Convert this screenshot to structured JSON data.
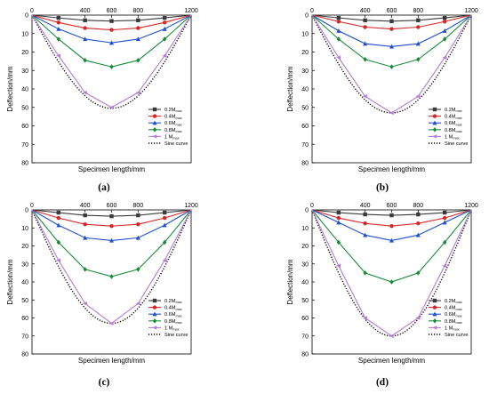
{
  "chart_data": [
    {
      "type": "line",
      "caption": "(a)",
      "xlabel": "Specimen length/mm",
      "ylabel": "Deflection/mm",
      "x_ticks": [
        "0",
        "400",
        "600",
        "800",
        "1200"
      ],
      "y_ticks": [
        "0",
        "10",
        "20",
        "30",
        "40",
        "50",
        "60",
        "70",
        "80"
      ],
      "xlim": [
        0,
        1200
      ],
      "ylim": [
        0,
        80
      ],
      "y_inverted": true,
      "x_axis_position": "top",
      "legend_placement": "bottom-right",
      "x": [
        0,
        200,
        400,
        600,
        800,
        1000,
        1200
      ],
      "series": [
        {
          "name": "0.2M",
          "subscript": "max",
          "color": "#3a3a3a",
          "marker": "square",
          "values": [
            0,
            1.5,
            2.8,
            3.2,
            2.8,
            1.5,
            0
          ]
        },
        {
          "name": "0.4M",
          "subscript": "max",
          "color": "#d62728",
          "marker": "circle",
          "values": [
            0,
            4,
            7,
            8,
            7,
            4,
            0
          ]
        },
        {
          "name": "0.6M",
          "subscript": "max",
          "color": "#1f4fc9",
          "marker": "triangle",
          "values": [
            0,
            7.5,
            13,
            15,
            13,
            7.5,
            0
          ]
        },
        {
          "name": "0.8M",
          "subscript": "max",
          "color": "#1a8a3a",
          "marker": "diamond",
          "values": [
            0,
            13,
            24.5,
            28,
            24.5,
            13,
            0
          ]
        },
        {
          "name": "1 M",
          "subscript": "max",
          "color": "#b57bd6",
          "marker": "triangle-left",
          "values": [
            0,
            22,
            42,
            50,
            42,
            22,
            0
          ]
        }
      ],
      "sine": {
        "name": "Sine curve",
        "color": "#000000",
        "amplitude": 50.5
      }
    },
    {
      "type": "line",
      "caption": "(b)",
      "xlabel": "Specimen length/mm",
      "ylabel": "Deflection/mm",
      "x_ticks": [
        "0",
        "400",
        "600",
        "800",
        "1200"
      ],
      "y_ticks": [
        "0",
        "10",
        "20",
        "30",
        "40",
        "50",
        "60",
        "70",
        "80"
      ],
      "xlim": [
        0,
        1200
      ],
      "ylim": [
        0,
        80
      ],
      "y_inverted": true,
      "x_axis_position": "top",
      "legend_placement": "bottom-right",
      "x": [
        0,
        200,
        400,
        600,
        800,
        1000,
        1200
      ],
      "series": [
        {
          "name": "0.2M",
          "subscript": "max",
          "color": "#3a3a3a",
          "marker": "square",
          "values": [
            0,
            1.5,
            2.8,
            3.3,
            2.8,
            1.5,
            0
          ]
        },
        {
          "name": "0.4M",
          "subscript": "max",
          "color": "#d62728",
          "marker": "circle",
          "values": [
            0,
            3.5,
            6.5,
            7.5,
            6.5,
            3.5,
            0
          ]
        },
        {
          "name": "0.6M",
          "subscript": "max",
          "color": "#1f4fc9",
          "marker": "triangle",
          "values": [
            0,
            8.5,
            15.5,
            17,
            15.5,
            8.5,
            0
          ]
        },
        {
          "name": "0.8M",
          "subscript": "max",
          "color": "#1a8a3a",
          "marker": "diamond",
          "values": [
            0,
            13,
            24,
            28,
            24,
            13,
            0
          ]
        },
        {
          "name": "1 M",
          "subscript": "max",
          "color": "#b57bd6",
          "marker": "triangle-left",
          "values": [
            0,
            23,
            44,
            53,
            44,
            23,
            0
          ]
        }
      ],
      "sine": {
        "name": "Sine curve",
        "color": "#000000",
        "amplitude": 53
      }
    },
    {
      "type": "line",
      "caption": "(c)",
      "xlabel": "Specimen length/mm",
      "ylabel": "Deflection/mm",
      "x_ticks": [
        "0",
        "400",
        "600",
        "800",
        "1200"
      ],
      "y_ticks": [
        "0",
        "10",
        "20",
        "30",
        "40",
        "50",
        "60",
        "70",
        "80"
      ],
      "xlim": [
        0,
        1200
      ],
      "ylim": [
        0,
        80
      ],
      "y_inverted": true,
      "x_axis_position": "top",
      "legend_placement": "bottom-right",
      "x": [
        0,
        200,
        400,
        600,
        800,
        1000,
        1200
      ],
      "series": [
        {
          "name": "0.2M",
          "subscript": "max",
          "color": "#3a3a3a",
          "marker": "square",
          "values": [
            0,
            1.5,
            3,
            3.5,
            3,
            1.5,
            0
          ]
        },
        {
          "name": "0.4M",
          "subscript": "max",
          "color": "#d62728",
          "marker": "circle",
          "values": [
            0,
            4.5,
            8,
            9,
            8,
            4.5,
            0
          ]
        },
        {
          "name": "0.6M",
          "subscript": "max",
          "color": "#1f4fc9",
          "marker": "triangle",
          "values": [
            0,
            8.5,
            15.5,
            17,
            15.5,
            8.5,
            0
          ]
        },
        {
          "name": "0.8M",
          "subscript": "max",
          "color": "#1a8a3a",
          "marker": "diamond",
          "values": [
            0,
            18,
            33,
            37,
            33,
            18,
            0
          ]
        },
        {
          "name": "1 M",
          "subscript": "max",
          "color": "#b57bd6",
          "marker": "triangle-left",
          "values": [
            0,
            28,
            52,
            63,
            52,
            28,
            0
          ]
        }
      ],
      "sine": {
        "name": "Sine curve",
        "color": "#000000",
        "amplitude": 63
      }
    },
    {
      "type": "line",
      "caption": "(d)",
      "xlabel": "Specimen length/mm",
      "ylabel": "Deflection/mm",
      "x_ticks": [
        "0",
        "400",
        "600",
        "800",
        "1200"
      ],
      "y_ticks": [
        "0",
        "10",
        "20",
        "30",
        "40",
        "50",
        "60",
        "70",
        "80"
      ],
      "xlim": [
        0,
        1200
      ],
      "ylim": [
        0,
        80
      ],
      "y_inverted": true,
      "x_axis_position": "top",
      "legend_placement": "bottom-right",
      "x": [
        0,
        200,
        400,
        600,
        800,
        1000,
        1200
      ],
      "series": [
        {
          "name": "0.2M",
          "subscript": "max",
          "color": "#3a3a3a",
          "marker": "square",
          "values": [
            0,
            1.5,
            2.5,
            3,
            2.5,
            1.5,
            0
          ]
        },
        {
          "name": "0.4M",
          "subscript": "max",
          "color": "#d62728",
          "marker": "circle",
          "values": [
            0,
            4.5,
            7.5,
            9,
            7.5,
            4.5,
            0
          ]
        },
        {
          "name": "0.6M",
          "subscript": "max",
          "color": "#1f4fc9",
          "marker": "triangle",
          "values": [
            0,
            7,
            14,
            17,
            14,
            7,
            0
          ]
        },
        {
          "name": "0.8M",
          "subscript": "max",
          "color": "#1a8a3a",
          "marker": "diamond",
          "values": [
            0,
            18,
            35,
            40,
            35,
            18,
            0
          ]
        },
        {
          "name": "1 M",
          "subscript": "max",
          "color": "#b57bd6",
          "marker": "triangle-left",
          "values": [
            0,
            31,
            60,
            70,
            60,
            31,
            0
          ]
        }
      ],
      "sine": {
        "name": "Sine curve",
        "color": "#000000",
        "amplitude": 70
      }
    }
  ]
}
